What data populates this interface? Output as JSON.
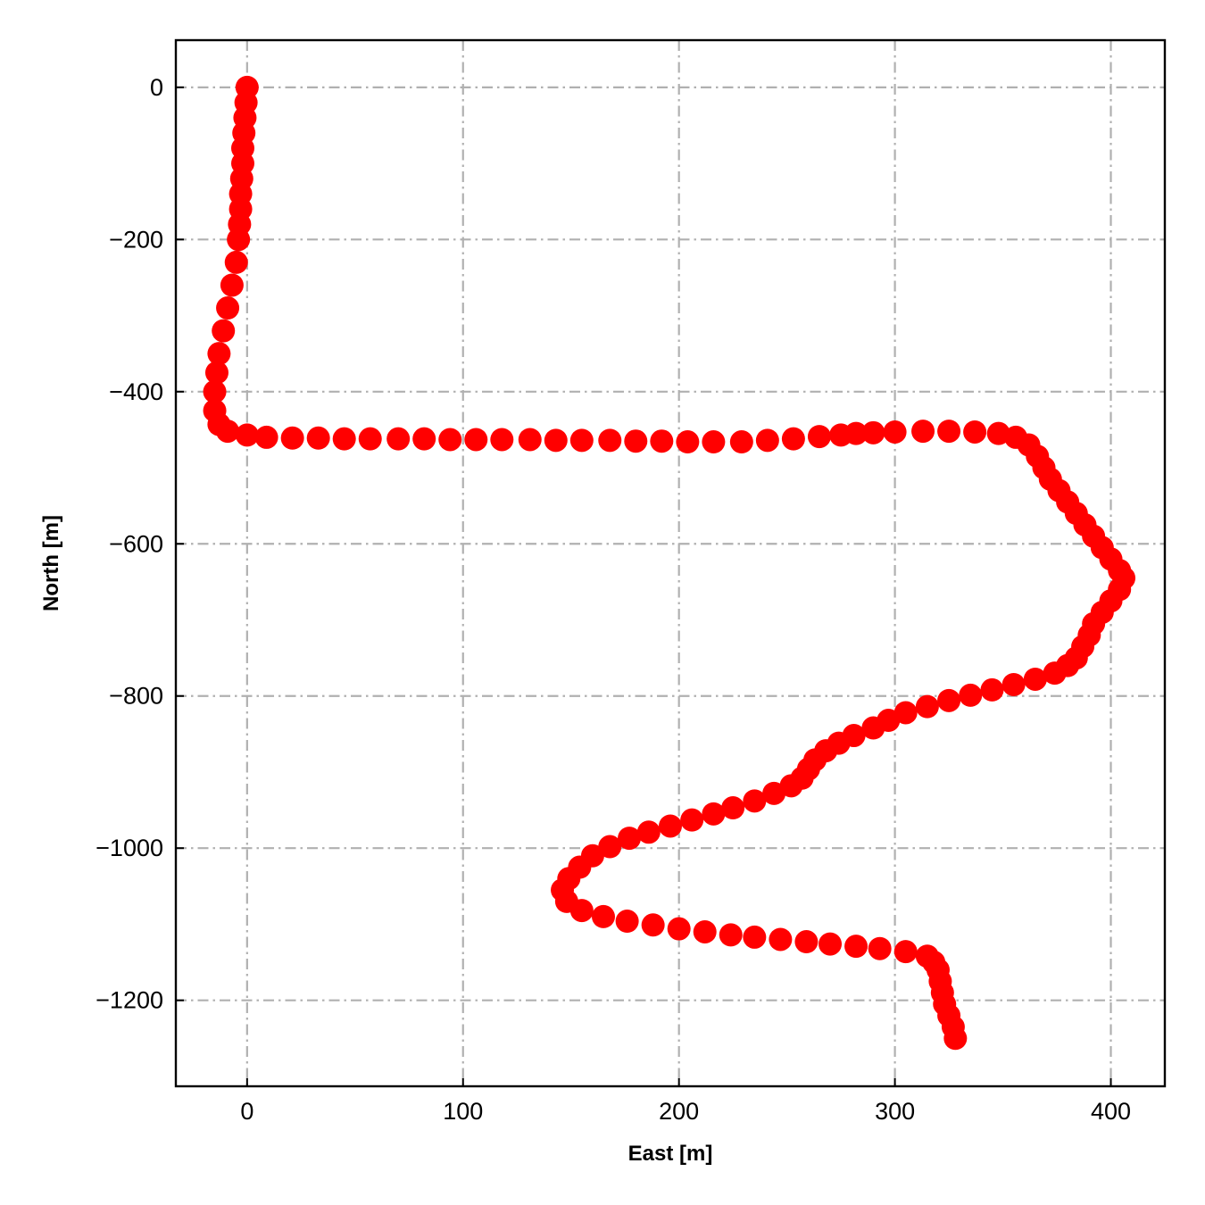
{
  "chart_data": {
    "type": "scatter",
    "title": "",
    "xlabel": "East [m]",
    "ylabel": "North [m]",
    "xlim": [
      -33,
      425
    ],
    "ylim": [
      -1313,
      62
    ],
    "x_ticks": [
      0,
      100,
      200,
      300,
      400
    ],
    "y_ticks": [
      0,
      -200,
      -400,
      -600,
      -800,
      -1000,
      -1200
    ],
    "x_tick_labels": [
      "0",
      "100",
      "200",
      "300",
      "400"
    ],
    "y_tick_labels": [
      "0",
      "−200",
      "−400",
      "−600",
      "−800",
      "−1000",
      "−1200"
    ],
    "grid": true,
    "marker_color": "#ff0000",
    "series": [
      {
        "x": [
          0,
          -0.5,
          -1,
          -1.5,
          -2,
          -2,
          -2.5,
          -3,
          -3,
          -3.5,
          -4,
          -5,
          -7,
          -9,
          -11,
          -13,
          -14,
          -15,
          -15,
          -13,
          -9,
          0,
          9,
          21,
          33,
          45,
          57,
          70,
          82,
          94,
          106,
          118,
          131,
          143,
          155,
          168,
          180,
          192,
          204,
          216,
          229,
          241,
          253,
          265,
          275,
          282,
          290,
          300,
          313,
          325,
          337,
          348,
          356,
          362,
          366,
          369,
          372,
          376,
          380,
          384,
          388,
          392,
          396,
          400,
          404,
          406,
          404,
          400,
          396,
          392,
          390,
          387,
          384,
          380,
          374,
          365,
          355,
          345,
          335,
          325,
          315,
          305,
          297,
          290,
          281,
          274,
          268,
          263,
          260,
          257,
          252,
          244,
          235,
          225,
          216,
          206,
          196,
          186,
          177,
          168,
          160,
          154,
          149,
          146,
          148,
          155,
          165,
          176,
          188,
          200,
          212,
          224,
          235,
          247,
          259,
          270,
          282,
          293,
          305,
          315,
          318,
          320,
          321,
          322,
          323,
          325,
          327,
          328
        ],
        "y": [
          0,
          -20,
          -40,
          -60,
          -80,
          -100,
          -120,
          -140,
          -160,
          -180,
          -200,
          -230,
          -260,
          -290,
          -320,
          -350,
          -375,
          -400,
          -425,
          -443,
          -452,
          -457,
          -460,
          -461,
          -461,
          -462,
          -462,
          -462,
          -462,
          -463,
          -463,
          -463,
          -463,
          -464,
          -464,
          -464,
          -465,
          -465,
          -466,
          -466,
          -466,
          -464,
          -462,
          -459,
          -457,
          -455,
          -454,
          -453,
          -452,
          -452,
          -453,
          -455,
          -460,
          -470,
          -485,
          -500,
          -515,
          -530,
          -545,
          -560,
          -575,
          -590,
          -605,
          -620,
          -635,
          -645,
          -660,
          -675,
          -690,
          -705,
          -720,
          -735,
          -750,
          -760,
          -770,
          -778,
          -785,
          -792,
          -799,
          -806,
          -814,
          -822,
          -832,
          -842,
          -852,
          -862,
          -872,
          -884,
          -896,
          -908,
          -918,
          -928,
          -938,
          -947,
          -955,
          -963,
          -971,
          -979,
          -987,
          -998,
          -1010,
          -1025,
          -1040,
          -1055,
          -1070,
          -1082,
          -1090,
          -1096,
          -1101,
          -1106,
          -1110,
          -1114,
          -1117,
          -1120,
          -1123,
          -1126,
          -1129,
          -1132,
          -1136,
          -1142,
          -1150,
          -1160,
          -1175,
          -1190,
          -1205,
          -1220,
          -1235,
          -1250
        ]
      }
    ]
  }
}
